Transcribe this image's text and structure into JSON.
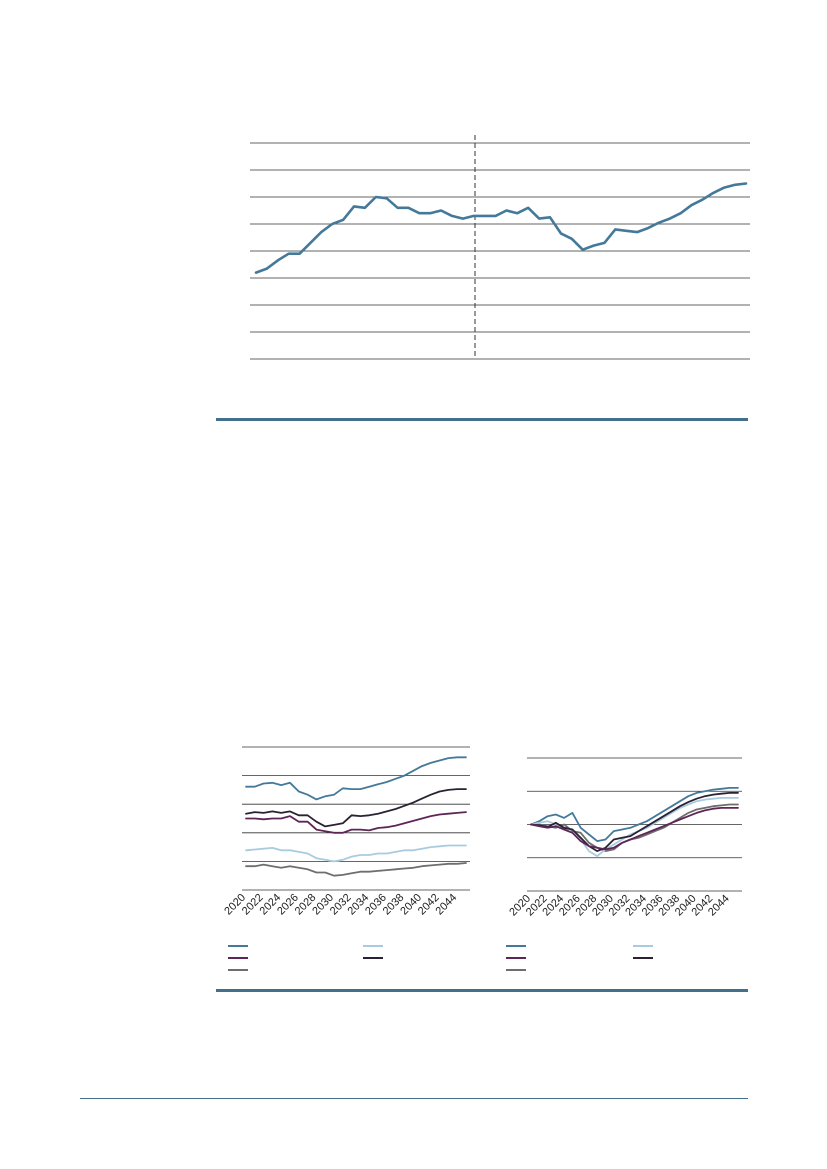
{
  "colors": {
    "rule": "#426f8c",
    "grid": "#333333",
    "steel_blue": "#44799a",
    "light_blue": "#a9cbdf",
    "purple": "#5e2557",
    "dark": "#2a2233",
    "grey": "#6e6e6e"
  },
  "chart_data": [
    {
      "type": "line",
      "has_vertical_divider": true,
      "gridlines": 9,
      "series": [
        {
          "color": "#44799a",
          "values": [
            -2.6,
            -2.3,
            -1.7,
            -1.2,
            -1.2,
            -0.4,
            0.4,
            1.0,
            1.3,
            2.3,
            2.2,
            3.0,
            2.9,
            2.2,
            2.2,
            1.8,
            1.8,
            2.0,
            1.6,
            1.4,
            1.6,
            1.6,
            1.6,
            2.0,
            1.8,
            2.2,
            1.4,
            1.5,
            0.3,
            -0.1,
            -0.9,
            -0.6,
            -0.4,
            0.6,
            0.5,
            0.4,
            0.7,
            1.1,
            1.4,
            1.8,
            2.4,
            2.8,
            3.3,
            3.7,
            3.9,
            4.0
          ]
        }
      ]
    },
    {
      "type": "line",
      "categories": [
        "2020",
        "2021",
        "2022",
        "2023",
        "2024",
        "2025",
        "2026",
        "2027",
        "2028",
        "2029",
        "2030",
        "2031",
        "2032",
        "2033",
        "2034",
        "2035",
        "2036",
        "2037",
        "2038",
        "2039",
        "2040",
        "2041",
        "2042",
        "2043",
        "2044",
        "2045"
      ],
      "tick_labels": [
        "2020",
        "2022",
        "2024",
        "2026",
        "2028",
        "2030",
        "2032",
        "2034",
        "2036",
        "2038",
        "2040",
        "2042",
        "2044"
      ],
      "gridlines": 6,
      "series": [
        {
          "color": "#44799a",
          "values": [
            1.5,
            1.5,
            1.7,
            1.75,
            1.6,
            1.75,
            1.2,
            1.0,
            0.7,
            0.9,
            1.0,
            1.4,
            1.35,
            1.35,
            1.5,
            1.65,
            1.8,
            2.0,
            2.2,
            2.5,
            2.8,
            3.0,
            3.15,
            3.3,
            3.35,
            3.35
          ]
        },
        {
          "color": "#2a2233",
          "values": [
            -0.2,
            -0.1,
            -0.15,
            -0.05,
            -0.15,
            -0.05,
            -0.3,
            -0.3,
            -0.7,
            -1.0,
            -0.9,
            -0.8,
            -0.3,
            -0.35,
            -0.3,
            -0.2,
            -0.05,
            0.1,
            0.3,
            0.5,
            0.75,
            1.0,
            1.2,
            1.3,
            1.35,
            1.35
          ]
        },
        {
          "color": "#5e2557",
          "values": [
            -0.5,
            -0.5,
            -0.55,
            -0.5,
            -0.5,
            -0.35,
            -0.7,
            -0.7,
            -1.2,
            -1.3,
            -1.4,
            -1.4,
            -1.2,
            -1.2,
            -1.25,
            -1.1,
            -1.05,
            -0.95,
            -0.8,
            -0.65,
            -0.5,
            -0.35,
            -0.25,
            -0.2,
            -0.15,
            -0.1
          ]
        },
        {
          "color": "#a9cbdf",
          "values": [
            -2.5,
            -2.45,
            -2.4,
            -2.35,
            -2.5,
            -2.5,
            -2.6,
            -2.7,
            -3.0,
            -3.1,
            -3.2,
            -3.1,
            -2.9,
            -2.8,
            -2.8,
            -2.7,
            -2.7,
            -2.6,
            -2.5,
            -2.5,
            -2.4,
            -2.3,
            -2.25,
            -2.2,
            -2.2,
            -2.2
          ]
        },
        {
          "color": "#6e6e6e",
          "values": [
            -3.5,
            -3.5,
            -3.4,
            -3.5,
            -3.6,
            -3.5,
            -3.6,
            -3.7,
            -3.9,
            -3.9,
            -4.1,
            -4.05,
            -3.95,
            -3.85,
            -3.85,
            -3.8,
            -3.75,
            -3.7,
            -3.65,
            -3.6,
            -3.5,
            -3.45,
            -3.4,
            -3.35,
            -3.35,
            -3.3
          ]
        }
      ]
    },
    {
      "type": "line",
      "categories": [
        "2020",
        "2021",
        "2022",
        "2023",
        "2024",
        "2025",
        "2026",
        "2027",
        "2028",
        "2029",
        "2030",
        "2031",
        "2032",
        "2033",
        "2034",
        "2035",
        "2036",
        "2037",
        "2038",
        "2039",
        "2040",
        "2041",
        "2042",
        "2043",
        "2044",
        "2045"
      ],
      "tick_labels": [
        "2020",
        "2022",
        "2024",
        "2026",
        "2028",
        "2030",
        "2032",
        "2034",
        "2036",
        "2038",
        "2040",
        "2042",
        "2044"
      ],
      "gridlines": 5,
      "series": [
        {
          "color": "#44799a",
          "values": [
            0.0,
            0.2,
            0.5,
            0.6,
            0.4,
            0.7,
            -0.2,
            -0.6,
            -1.0,
            -0.9,
            -0.4,
            -0.3,
            -0.2,
            0.0,
            0.2,
            0.5,
            0.8,
            1.1,
            1.4,
            1.7,
            1.9,
            2.0,
            2.1,
            2.15,
            2.2,
            2.2
          ]
        },
        {
          "color": "#6e6e6e",
          "values": [
            0.0,
            0.0,
            -0.1,
            -0.2,
            0.0,
            -0.4,
            -0.5,
            -1.1,
            -1.4,
            -1.6,
            -1.5,
            -1.1,
            -0.9,
            -0.8,
            -0.6,
            -0.4,
            -0.2,
            0.1,
            0.4,
            0.7,
            0.9,
            1.0,
            1.1,
            1.15,
            1.2,
            1.2
          ]
        },
        {
          "color": "#a9cbdf",
          "values": [
            0.0,
            0.1,
            0.2,
            0.0,
            -0.3,
            -0.3,
            -0.9,
            -1.6,
            -1.9,
            -1.5,
            -1.2,
            -0.9,
            -0.6,
            -0.4,
            -0.2,
            0.1,
            0.4,
            0.7,
            1.0,
            1.2,
            1.4,
            1.5,
            1.55,
            1.6,
            1.6,
            1.6
          ]
        },
        {
          "color": "#2a2233",
          "values": [
            0.0,
            -0.05,
            -0.15,
            0.1,
            -0.2,
            -0.3,
            -0.8,
            -1.3,
            -1.6,
            -1.4,
            -0.9,
            -0.8,
            -0.7,
            -0.4,
            -0.1,
            0.2,
            0.5,
            0.8,
            1.1,
            1.35,
            1.55,
            1.7,
            1.8,
            1.85,
            1.9,
            1.9
          ]
        },
        {
          "color": "#5e2557",
          "values": [
            0.0,
            -0.1,
            -0.2,
            -0.1,
            -0.3,
            -0.5,
            -1.0,
            -1.3,
            -1.4,
            -1.5,
            -1.4,
            -1.1,
            -0.9,
            -0.7,
            -0.5,
            -0.3,
            -0.1,
            0.1,
            0.3,
            0.5,
            0.7,
            0.85,
            0.95,
            1.0,
            1.0,
            1.0
          ]
        }
      ]
    }
  ],
  "legend_colors": [
    "#44799a",
    "#a9cbdf",
    "#5e2557",
    "#2a2233",
    "#6e6e6e"
  ]
}
